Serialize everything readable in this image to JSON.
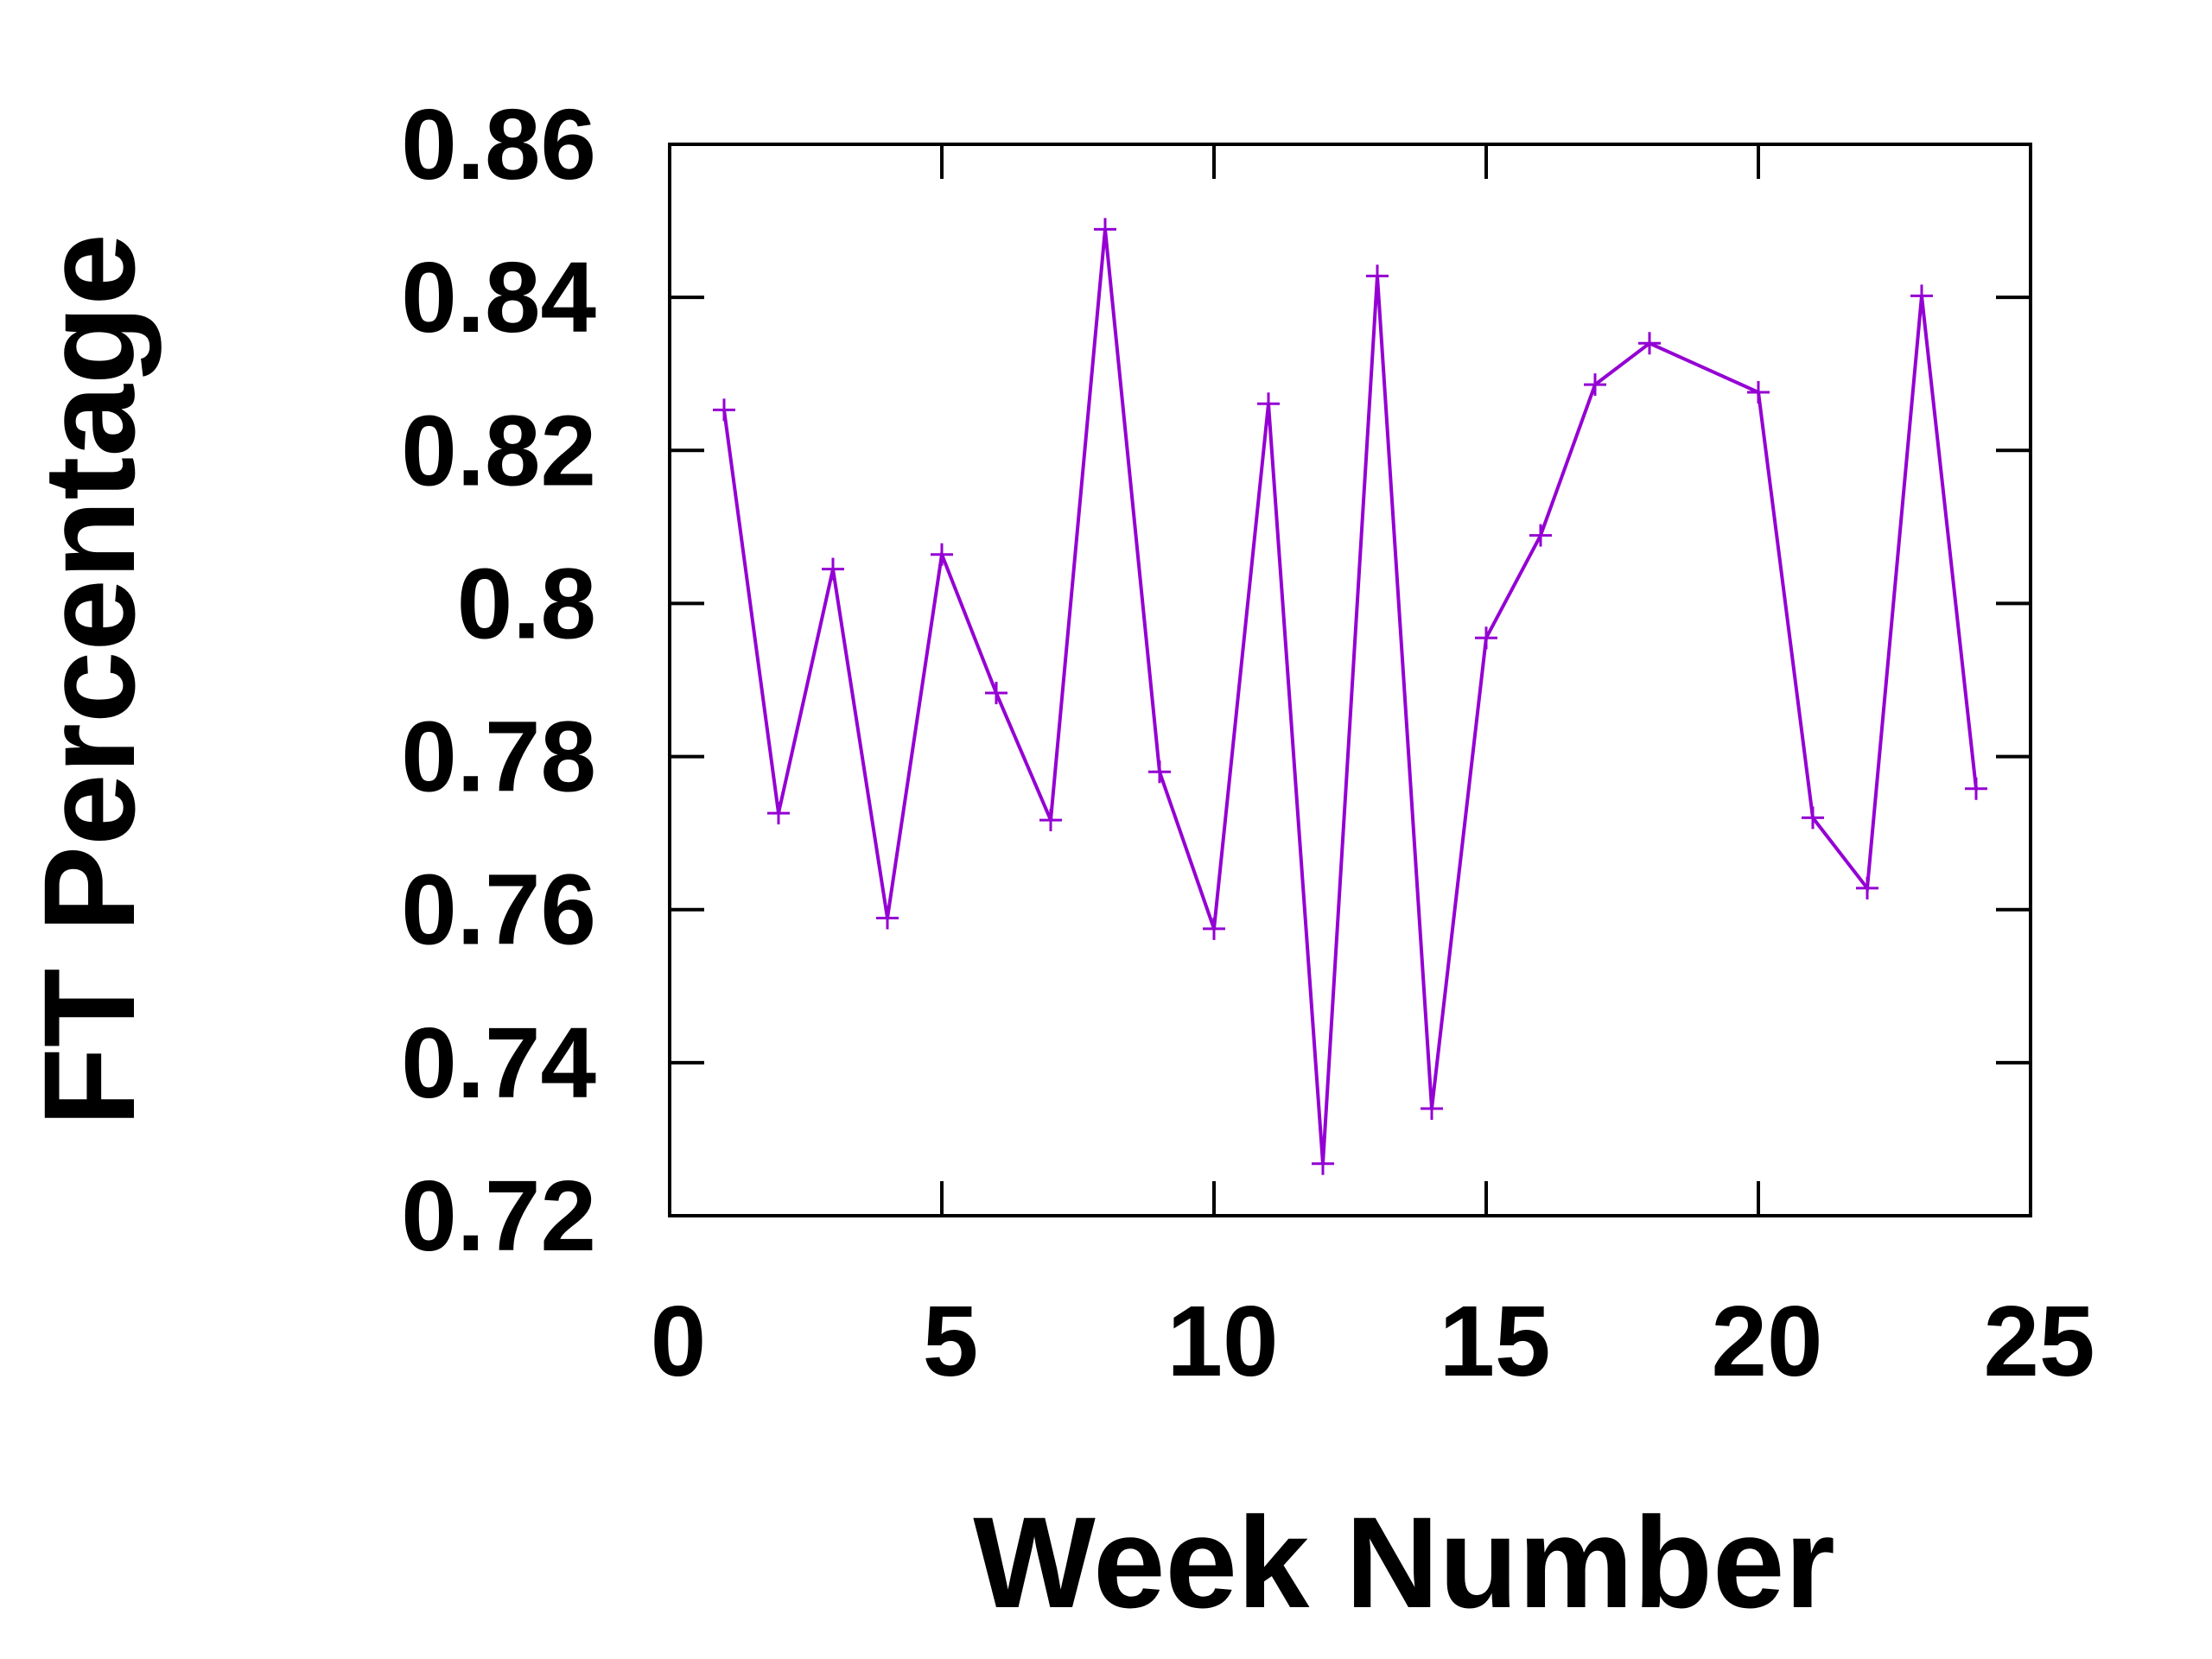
{
  "chart_data": {
    "type": "line",
    "title": "",
    "xlabel": "Week Number",
    "ylabel": "FT Percentage",
    "xlim": [
      0,
      25
    ],
    "ylim": [
      0.72,
      0.86
    ],
    "xticks": [
      0,
      5,
      10,
      15,
      20,
      25
    ],
    "xtick_labels": [
      "0",
      "5",
      "10",
      "15",
      "20",
      "25"
    ],
    "yticks": [
      0.72,
      0.74,
      0.76,
      0.78,
      0.8,
      0.82,
      0.84,
      0.86
    ],
    "ytick_labels": [
      "0.72",
      "0.74",
      "0.76",
      "0.78",
      "0.8",
      "0.82",
      "0.84",
      "0.86"
    ],
    "grid": false,
    "legend": "none",
    "marker": "plus",
    "color": "#9400D3",
    "series": [
      {
        "x": [
          1,
          2,
          3,
          4,
          5,
          6,
          7,
          8,
          9,
          10,
          11,
          12,
          13,
          14,
          15,
          16,
          17,
          18,
          20,
          21,
          22,
          23,
          24
        ],
        "values": [
          0.8253,
          0.7726,
          0.8045,
          0.7589,
          0.8064,
          0.7883,
          0.7717,
          0.8489,
          0.778,
          0.7575,
          0.8261,
          0.7268,
          0.8428,
          0.734,
          0.7955,
          0.8089,
          0.8286,
          0.834,
          0.8276,
          0.772,
          0.7628,
          0.8402,
          0.7758
        ]
      }
    ]
  }
}
